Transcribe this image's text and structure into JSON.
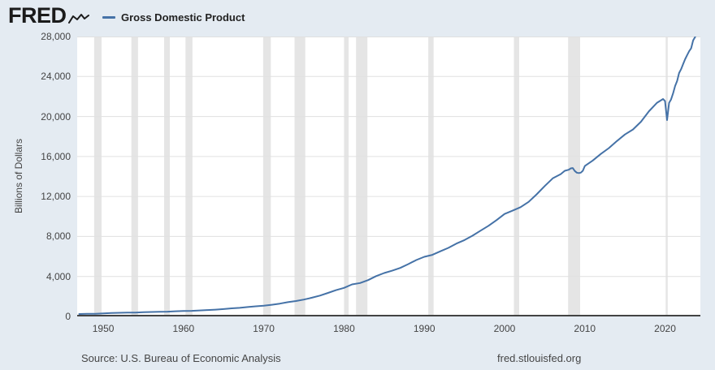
{
  "header": {
    "logo_text": "FRED",
    "legend": {
      "series_label": "Gross Domestic Product",
      "swatch_color": "#4572a7"
    }
  },
  "chart": {
    "y_axis_title": "Billions of Dollars"
  },
  "footer": {
    "source_text": "Source: U.S. Bureau of Economic Analysis",
    "site_url": "fred.stlouisfed.org"
  },
  "colors": {
    "page_bg": "#e4ebf2",
    "plot_bg": "#ffffff",
    "line": "#4572a7",
    "recession_band": "#e5e5e5",
    "gridline": "#e0e0e0",
    "zero_line": "#434343",
    "label_text": "#444444"
  },
  "chart_data": {
    "type": "line",
    "title": "Gross Domestic Product",
    "xlabel": "",
    "ylabel": "Billions of Dollars",
    "units": "Billions of Dollars",
    "legend_position": "top-left",
    "grid": "horizontal",
    "xlim": [
      1946.75,
      2024.4
    ],
    "ylim": [
      0,
      28000
    ],
    "y_ticks": [
      0,
      4000,
      8000,
      12000,
      16000,
      20000,
      24000,
      28000
    ],
    "x_ticks": [
      1950,
      1960,
      1970,
      1980,
      1990,
      2000,
      2010,
      2020
    ],
    "recessions": [
      [
        1948.87,
        1949.79
      ],
      [
        1953.5,
        1954.33
      ],
      [
        1957.58,
        1958.29
      ],
      [
        1960.25,
        1961.12
      ],
      [
        1969.92,
        1970.87
      ],
      [
        1973.83,
        1975.17
      ],
      [
        1980.0,
        1980.58
      ],
      [
        1981.5,
        1982.92
      ],
      [
        1990.5,
        1991.17
      ],
      [
        2001.17,
        2001.83
      ],
      [
        2007.92,
        2009.42
      ],
      [
        2020.08,
        2020.33
      ]
    ],
    "series": [
      {
        "name": "Gross Domestic Product",
        "color": "#4572a7",
        "points": [
          [
            1947,
            243.2
          ],
          [
            1948,
            269.2
          ],
          [
            1949,
            267.3
          ],
          [
            1950,
            299.8
          ],
          [
            1951,
            347.3
          ],
          [
            1952,
            367.7
          ],
          [
            1953,
            389.2
          ],
          [
            1954,
            390.5
          ],
          [
            1955,
            425.5
          ],
          [
            1956,
            449.4
          ],
          [
            1957,
            474.0
          ],
          [
            1958,
            481.2
          ],
          [
            1959,
            521.7
          ],
          [
            1960,
            542.4
          ],
          [
            1961,
            562.2
          ],
          [
            1962,
            603.9
          ],
          [
            1963,
            637.5
          ],
          [
            1964,
            684.5
          ],
          [
            1965,
            742.3
          ],
          [
            1966,
            813.4
          ],
          [
            1967,
            860.0
          ],
          [
            1968,
            940.7
          ],
          [
            1969,
            1017.6
          ],
          [
            1970,
            1073.3
          ],
          [
            1971,
            1164.9
          ],
          [
            1972,
            1279.1
          ],
          [
            1973,
            1425.4
          ],
          [
            1974,
            1545.2
          ],
          [
            1975,
            1684.9
          ],
          [
            1976,
            1873.4
          ],
          [
            1977,
            2081.8
          ],
          [
            1978,
            2351.6
          ],
          [
            1979,
            2627.3
          ],
          [
            1980,
            2857.3
          ],
          [
            1981,
            3207.0
          ],
          [
            1982,
            3343.8
          ],
          [
            1983,
            3634.0
          ],
          [
            1984,
            4037.6
          ],
          [
            1985,
            4339.0
          ],
          [
            1986,
            4579.6
          ],
          [
            1987,
            4855.2
          ],
          [
            1988,
            5236.4
          ],
          [
            1989,
            5641.6
          ],
          [
            1990,
            5963.1
          ],
          [
            1991,
            6158.1
          ],
          [
            1992,
            6520.3
          ],
          [
            1993,
            6858.6
          ],
          [
            1994,
            7287.2
          ],
          [
            1995,
            7639.7
          ],
          [
            1996,
            8073.1
          ],
          [
            1997,
            8577.6
          ],
          [
            1998,
            9062.8
          ],
          [
            1999,
            9631.2
          ],
          [
            2000,
            10250.9
          ],
          [
            2001,
            10581.9
          ],
          [
            2002,
            10929.1
          ],
          [
            2003,
            11456.5
          ],
          [
            2004,
            12217.2
          ],
          [
            2005,
            13039.2
          ],
          [
            2006,
            13815.6
          ],
          [
            2007,
            14233.2
          ],
          [
            2007.5,
            14566.9
          ],
          [
            2008,
            14673.0
          ],
          [
            2008.25,
            14813.0
          ],
          [
            2008.5,
            14843.0
          ],
          [
            2008.75,
            14549.9
          ],
          [
            2009,
            14383.9
          ],
          [
            2009.25,
            14340.4
          ],
          [
            2009.5,
            14384.4
          ],
          [
            2009.75,
            14566.5
          ],
          [
            2010,
            15049.0
          ],
          [
            2011,
            15599.7
          ],
          [
            2012,
            16254.0
          ],
          [
            2013,
            16843.2
          ],
          [
            2014,
            17550.7
          ],
          [
            2015,
            18206.0
          ],
          [
            2016,
            18695.1
          ],
          [
            2017,
            19477.3
          ],
          [
            2018,
            20533.1
          ],
          [
            2019,
            21380.9
          ],
          [
            2019.75,
            21747.4
          ],
          [
            2020,
            21538.0
          ],
          [
            2020.25,
            19636.7
          ],
          [
            2020.5,
            21362.4
          ],
          [
            2020.75,
            21704.7
          ],
          [
            2021,
            22313.9
          ],
          [
            2021.25,
            23046.9
          ],
          [
            2021.5,
            23550.4
          ],
          [
            2021.75,
            24349.1
          ],
          [
            2022,
            24740.5
          ],
          [
            2022.25,
            25248.5
          ],
          [
            2022.5,
            25723.9
          ],
          [
            2022.75,
            26144.9
          ],
          [
            2023,
            26530.0
          ],
          [
            2023.25,
            26813.6
          ],
          [
            2023.5,
            27610.1
          ],
          [
            2023.75,
            27957.0
          ]
        ]
      }
    ]
  }
}
